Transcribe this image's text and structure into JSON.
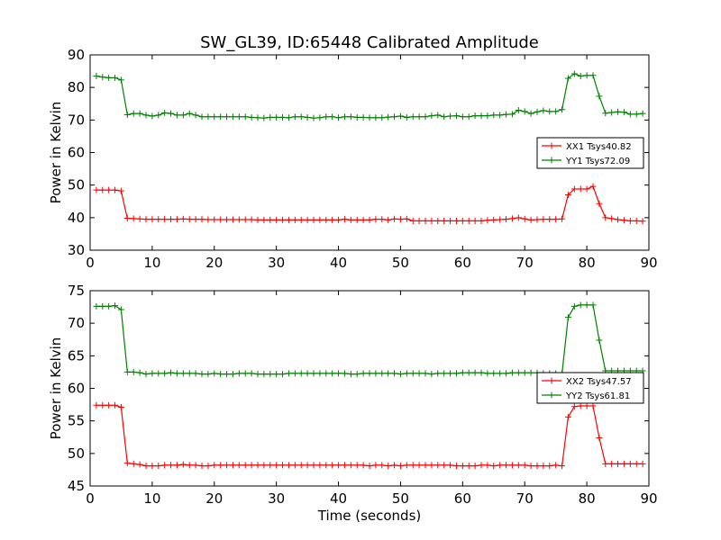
{
  "figure": {
    "title": "SW_GL39, ID:65448 Calibrated Amplitude",
    "xlabel": "Time (seconds)"
  },
  "chart_data": [
    {
      "type": "line",
      "ylabel": "Power in Kelvin",
      "xlim": [
        0,
        90
      ],
      "ylim": [
        30,
        90
      ],
      "xticks": [
        0,
        10,
        20,
        30,
        40,
        50,
        60,
        70,
        80,
        90
      ],
      "yticks": [
        30,
        40,
        50,
        60,
        70,
        80,
        90
      ],
      "grid": false,
      "legend_position": "right",
      "series": [
        {
          "name": "XX1 Tsys40.82",
          "color": "#ff0000",
          "marker": "+",
          "x": [
            1,
            2,
            3,
            4,
            5,
            6,
            7,
            8,
            9,
            10,
            11,
            12,
            13,
            14,
            15,
            16,
            17,
            18,
            19,
            20,
            21,
            22,
            23,
            24,
            25,
            26,
            27,
            28,
            29,
            30,
            31,
            32,
            33,
            34,
            35,
            36,
            37,
            38,
            39,
            40,
            41,
            42,
            43,
            44,
            45,
            46,
            47,
            48,
            49,
            50,
            51,
            52,
            53,
            54,
            55,
            56,
            57,
            58,
            59,
            60,
            61,
            62,
            63,
            64,
            65,
            66,
            67,
            68,
            69,
            70,
            71,
            72,
            73,
            74,
            75,
            76,
            77,
            78,
            79,
            80,
            81,
            82,
            83,
            84,
            85,
            86,
            87,
            88,
            89
          ],
          "y": [
            48.5,
            48.5,
            48.5,
            48.5,
            48.2,
            39.8,
            39.7,
            39.6,
            39.5,
            39.5,
            39.5,
            39.5,
            39.5,
            39.5,
            39.6,
            39.5,
            39.5,
            39.5,
            39.4,
            39.4,
            39.4,
            39.4,
            39.4,
            39.4,
            39.4,
            39.4,
            39.3,
            39.3,
            39.3,
            39.3,
            39.3,
            39.3,
            39.3,
            39.3,
            39.3,
            39.3,
            39.3,
            39.3,
            39.3,
            39.3,
            39.5,
            39.3,
            39.3,
            39.3,
            39.3,
            39.5,
            39.5,
            39.3,
            39.6,
            39.5,
            39.6,
            39.0,
            39.0,
            39.0,
            39.0,
            39.0,
            39.0,
            39.0,
            39.0,
            39.0,
            39.0,
            39.0,
            39.0,
            39.2,
            39.3,
            39.4,
            39.5,
            39.7,
            40.0,
            39.6,
            39.3,
            39.4,
            39.5,
            39.5,
            39.5,
            39.6,
            47.0,
            48.8,
            48.8,
            48.8,
            49.6,
            44.3,
            40.0,
            39.7,
            39.4,
            39.2,
            39.0,
            39.0,
            38.9
          ]
        },
        {
          "name": "YY1 Tsys72.09",
          "color": "#008000",
          "marker": "+",
          "x": [
            1,
            2,
            3,
            4,
            5,
            6,
            7,
            8,
            9,
            10,
            11,
            12,
            13,
            14,
            15,
            16,
            17,
            18,
            19,
            20,
            21,
            22,
            23,
            24,
            25,
            26,
            27,
            28,
            29,
            30,
            31,
            32,
            33,
            34,
            35,
            36,
            37,
            38,
            39,
            40,
            41,
            42,
            43,
            44,
            45,
            46,
            47,
            48,
            49,
            50,
            51,
            52,
            53,
            54,
            55,
            56,
            57,
            58,
            59,
            60,
            61,
            62,
            63,
            64,
            65,
            66,
            67,
            68,
            69,
            70,
            71,
            72,
            73,
            74,
            75,
            76,
            77,
            78,
            79,
            80,
            81,
            82,
            83,
            84,
            85,
            86,
            87,
            88,
            89
          ],
          "y": [
            83.5,
            83.2,
            83.0,
            83.0,
            82.3,
            71.6,
            72.0,
            72.0,
            71.5,
            71.2,
            71.5,
            72.2,
            72.0,
            71.5,
            71.5,
            72.0,
            71.5,
            71.0,
            71.0,
            71.0,
            71.0,
            71.0,
            71.0,
            71.0,
            71.0,
            70.8,
            70.7,
            70.6,
            70.8,
            70.8,
            70.8,
            70.7,
            71.0,
            71.0,
            70.8,
            70.6,
            70.7,
            71.0,
            71.0,
            70.7,
            71.0,
            71.0,
            70.8,
            70.8,
            70.7,
            70.7,
            70.7,
            70.9,
            71.0,
            71.2,
            70.8,
            71.0,
            71.0,
            71.0,
            71.3,
            71.5,
            71.0,
            71.2,
            71.3,
            71.0,
            71.0,
            71.3,
            71.3,
            71.3,
            71.5,
            71.5,
            71.7,
            71.8,
            73.0,
            72.6,
            72.0,
            72.5,
            72.9,
            72.6,
            72.6,
            73.2,
            82.8,
            84.2,
            83.5,
            83.7,
            83.7,
            77.3,
            72.1,
            72.3,
            72.5,
            72.4,
            71.8,
            71.8,
            72.0
          ]
        }
      ]
    },
    {
      "type": "line",
      "ylabel": "Power in Kelvin",
      "xlabel": "Time (seconds)",
      "xlim": [
        0,
        90
      ],
      "ylim": [
        45,
        75
      ],
      "xticks": [
        0,
        10,
        20,
        30,
        40,
        50,
        60,
        70,
        80,
        90
      ],
      "yticks": [
        45,
        50,
        55,
        60,
        65,
        70,
        75
      ],
      "grid": false,
      "legend_position": "right",
      "series": [
        {
          "name": "XX2 Tsys47.57",
          "color": "#ff0000",
          "marker": "+",
          "x": [
            1,
            2,
            3,
            4,
            5,
            6,
            7,
            8,
            9,
            10,
            11,
            12,
            13,
            14,
            15,
            16,
            17,
            18,
            19,
            20,
            21,
            22,
            23,
            24,
            25,
            26,
            27,
            28,
            29,
            30,
            31,
            32,
            33,
            34,
            35,
            36,
            37,
            38,
            39,
            40,
            41,
            42,
            43,
            44,
            45,
            46,
            47,
            48,
            49,
            50,
            51,
            52,
            53,
            54,
            55,
            56,
            57,
            58,
            59,
            60,
            61,
            62,
            63,
            64,
            65,
            66,
            67,
            68,
            69,
            70,
            71,
            72,
            73,
            74,
            75,
            76,
            77,
            78,
            79,
            80,
            81,
            82,
            83,
            84,
            85,
            86,
            87,
            88,
            89
          ],
          "y": [
            57.4,
            57.4,
            57.4,
            57.4,
            57.1,
            48.5,
            48.4,
            48.3,
            48.1,
            48.1,
            48.1,
            48.2,
            48.2,
            48.2,
            48.3,
            48.2,
            48.2,
            48.1,
            48.1,
            48.2,
            48.2,
            48.2,
            48.2,
            48.2,
            48.2,
            48.2,
            48.2,
            48.2,
            48.2,
            48.2,
            48.2,
            48.2,
            48.2,
            48.2,
            48.2,
            48.2,
            48.2,
            48.2,
            48.2,
            48.2,
            48.2,
            48.2,
            48.2,
            48.2,
            48.1,
            48.2,
            48.2,
            48.1,
            48.2,
            48.1,
            48.2,
            48.2,
            48.2,
            48.2,
            48.2,
            48.2,
            48.2,
            48.2,
            48.1,
            48.1,
            48.1,
            48.1,
            48.2,
            48.2,
            48.1,
            48.2,
            48.2,
            48.2,
            48.2,
            48.2,
            48.1,
            48.1,
            48.1,
            48.1,
            48.2,
            48.1,
            55.6,
            57.2,
            57.3,
            57.3,
            57.3,
            52.4,
            48.4,
            48.4,
            48.4,
            48.4,
            48.4,
            48.4,
            48.4
          ]
        },
        {
          "name": "YY2 Tsys61.81",
          "color": "#008000",
          "marker": "+",
          "x": [
            1,
            2,
            3,
            4,
            5,
            6,
            7,
            8,
            9,
            10,
            11,
            12,
            13,
            14,
            15,
            16,
            17,
            18,
            19,
            20,
            21,
            22,
            23,
            24,
            25,
            26,
            27,
            28,
            29,
            30,
            31,
            32,
            33,
            34,
            35,
            36,
            37,
            38,
            39,
            40,
            41,
            42,
            43,
            44,
            45,
            46,
            47,
            48,
            49,
            50,
            51,
            52,
            53,
            54,
            55,
            56,
            57,
            58,
            59,
            60,
            61,
            62,
            63,
            64,
            65,
            66,
            67,
            68,
            69,
            70,
            71,
            72,
            73,
            74,
            75,
            76,
            77,
            78,
            79,
            80,
            81,
            82,
            83,
            84,
            85,
            86,
            87,
            88,
            89
          ],
          "y": [
            72.6,
            72.6,
            72.6,
            72.7,
            72.1,
            62.5,
            62.5,
            62.4,
            62.2,
            62.3,
            62.3,
            62.3,
            62.4,
            62.3,
            62.3,
            62.3,
            62.3,
            62.2,
            62.2,
            62.3,
            62.2,
            62.2,
            62.2,
            62.3,
            62.3,
            62.3,
            62.2,
            62.2,
            62.2,
            62.2,
            62.2,
            62.3,
            62.3,
            62.3,
            62.3,
            62.3,
            62.3,
            62.3,
            62.3,
            62.3,
            62.3,
            62.2,
            62.2,
            62.3,
            62.3,
            62.3,
            62.3,
            62.3,
            62.3,
            62.2,
            62.3,
            62.3,
            62.3,
            62.3,
            62.2,
            62.3,
            62.3,
            62.3,
            62.3,
            62.4,
            62.4,
            62.4,
            62.4,
            62.3,
            62.3,
            62.3,
            62.3,
            62.4,
            62.4,
            62.4,
            62.4,
            62.4,
            62.3,
            62.3,
            62.3,
            62.3,
            70.9,
            72.6,
            72.8,
            72.8,
            72.8,
            67.4,
            62.7,
            62.7,
            62.7,
            62.7,
            62.7,
            62.7,
            62.7
          ]
        }
      ]
    }
  ]
}
